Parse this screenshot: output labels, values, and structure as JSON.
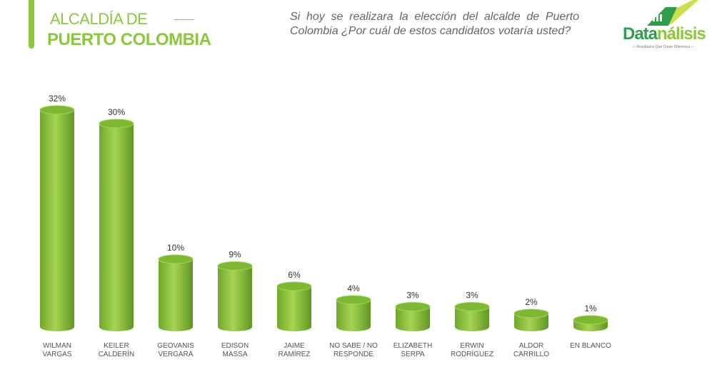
{
  "header": {
    "title_line1": "ALCALDÍA DE",
    "title_line2": "PUERTO COLOMBIA",
    "question": "Si hoy se realizara la elección del alcalde de Puerto Colombia ¿Por cuál de estos candidatos votaría usted?",
    "logo_part1": "Data",
    "logo_part2": "nálisis",
    "logo_tagline": "— Resultados Que Crean Diferencia —"
  },
  "chart_data": {
    "type": "bar",
    "title": "",
    "xlabel": "",
    "ylabel": "",
    "ylim": [
      0,
      35
    ],
    "categories": [
      "WILMAN\nVARGAS",
      "KEILER\nCALDERÍN",
      "GEOVANIS\nVERGARA",
      "EDISON\nMASSA",
      "JAIME\nRAMÍREZ",
      "NO SABE / NO\nRESPONDE",
      "ELIZABETH\nSERPA",
      "ERWIN\nRODRÍGUEZ",
      "ALDOR\nCARRILLO",
      "EN BLANCO"
    ],
    "values": [
      32,
      30,
      10,
      9,
      6,
      4,
      3,
      3,
      2,
      1
    ],
    "labels": [
      "32%",
      "30%",
      "10%",
      "9%",
      "6%",
      "4%",
      "3%",
      "3%",
      "2%",
      "1%"
    ],
    "color": "#8cc63f"
  }
}
